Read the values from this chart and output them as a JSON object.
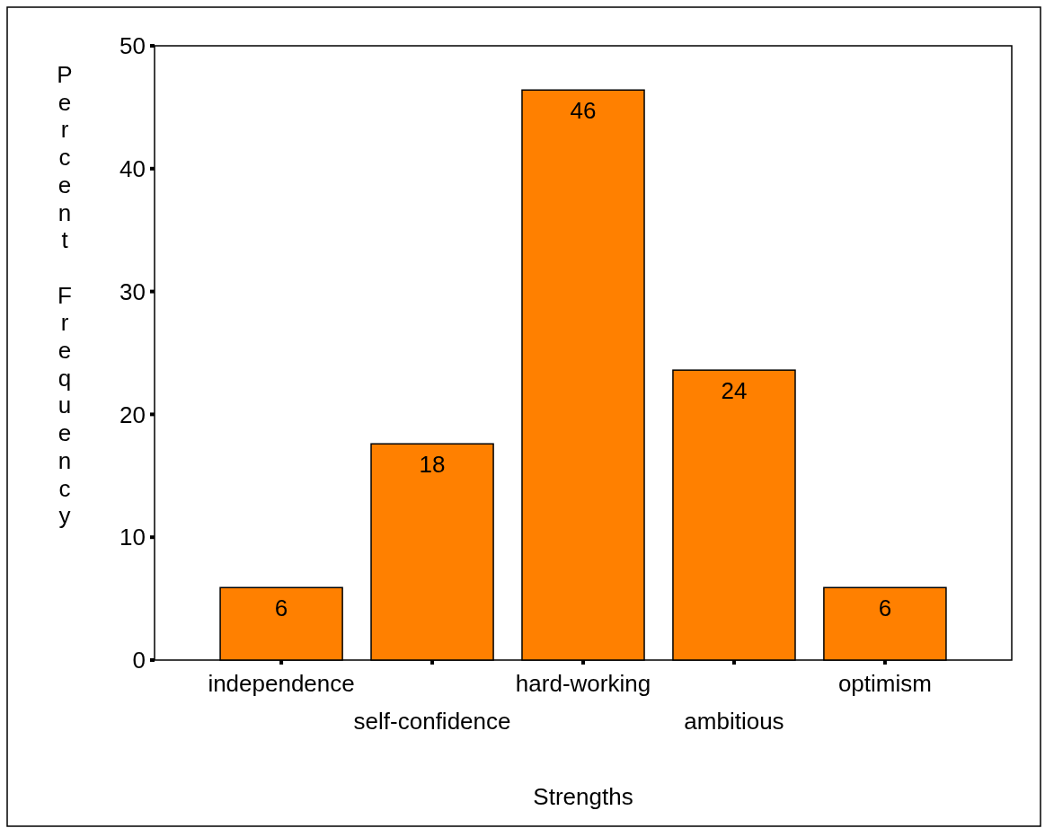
{
  "chart_data": {
    "type": "bar",
    "xlabel": "Strengths",
    "ylabel": "Percent Frequency",
    "categories": [
      "independence",
      "self-confidence",
      "hard-working",
      "ambitious",
      "optimism"
    ],
    "values": [
      5.9,
      17.6,
      46.4,
      23.6,
      5.9
    ],
    "value_labels": [
      "6",
      "18",
      "46",
      "24",
      "6"
    ],
    "color": "#ff8000",
    "ylim": [
      0,
      50
    ],
    "yticks": [
      0,
      10,
      20,
      30,
      40,
      50
    ],
    "grid": false
  }
}
